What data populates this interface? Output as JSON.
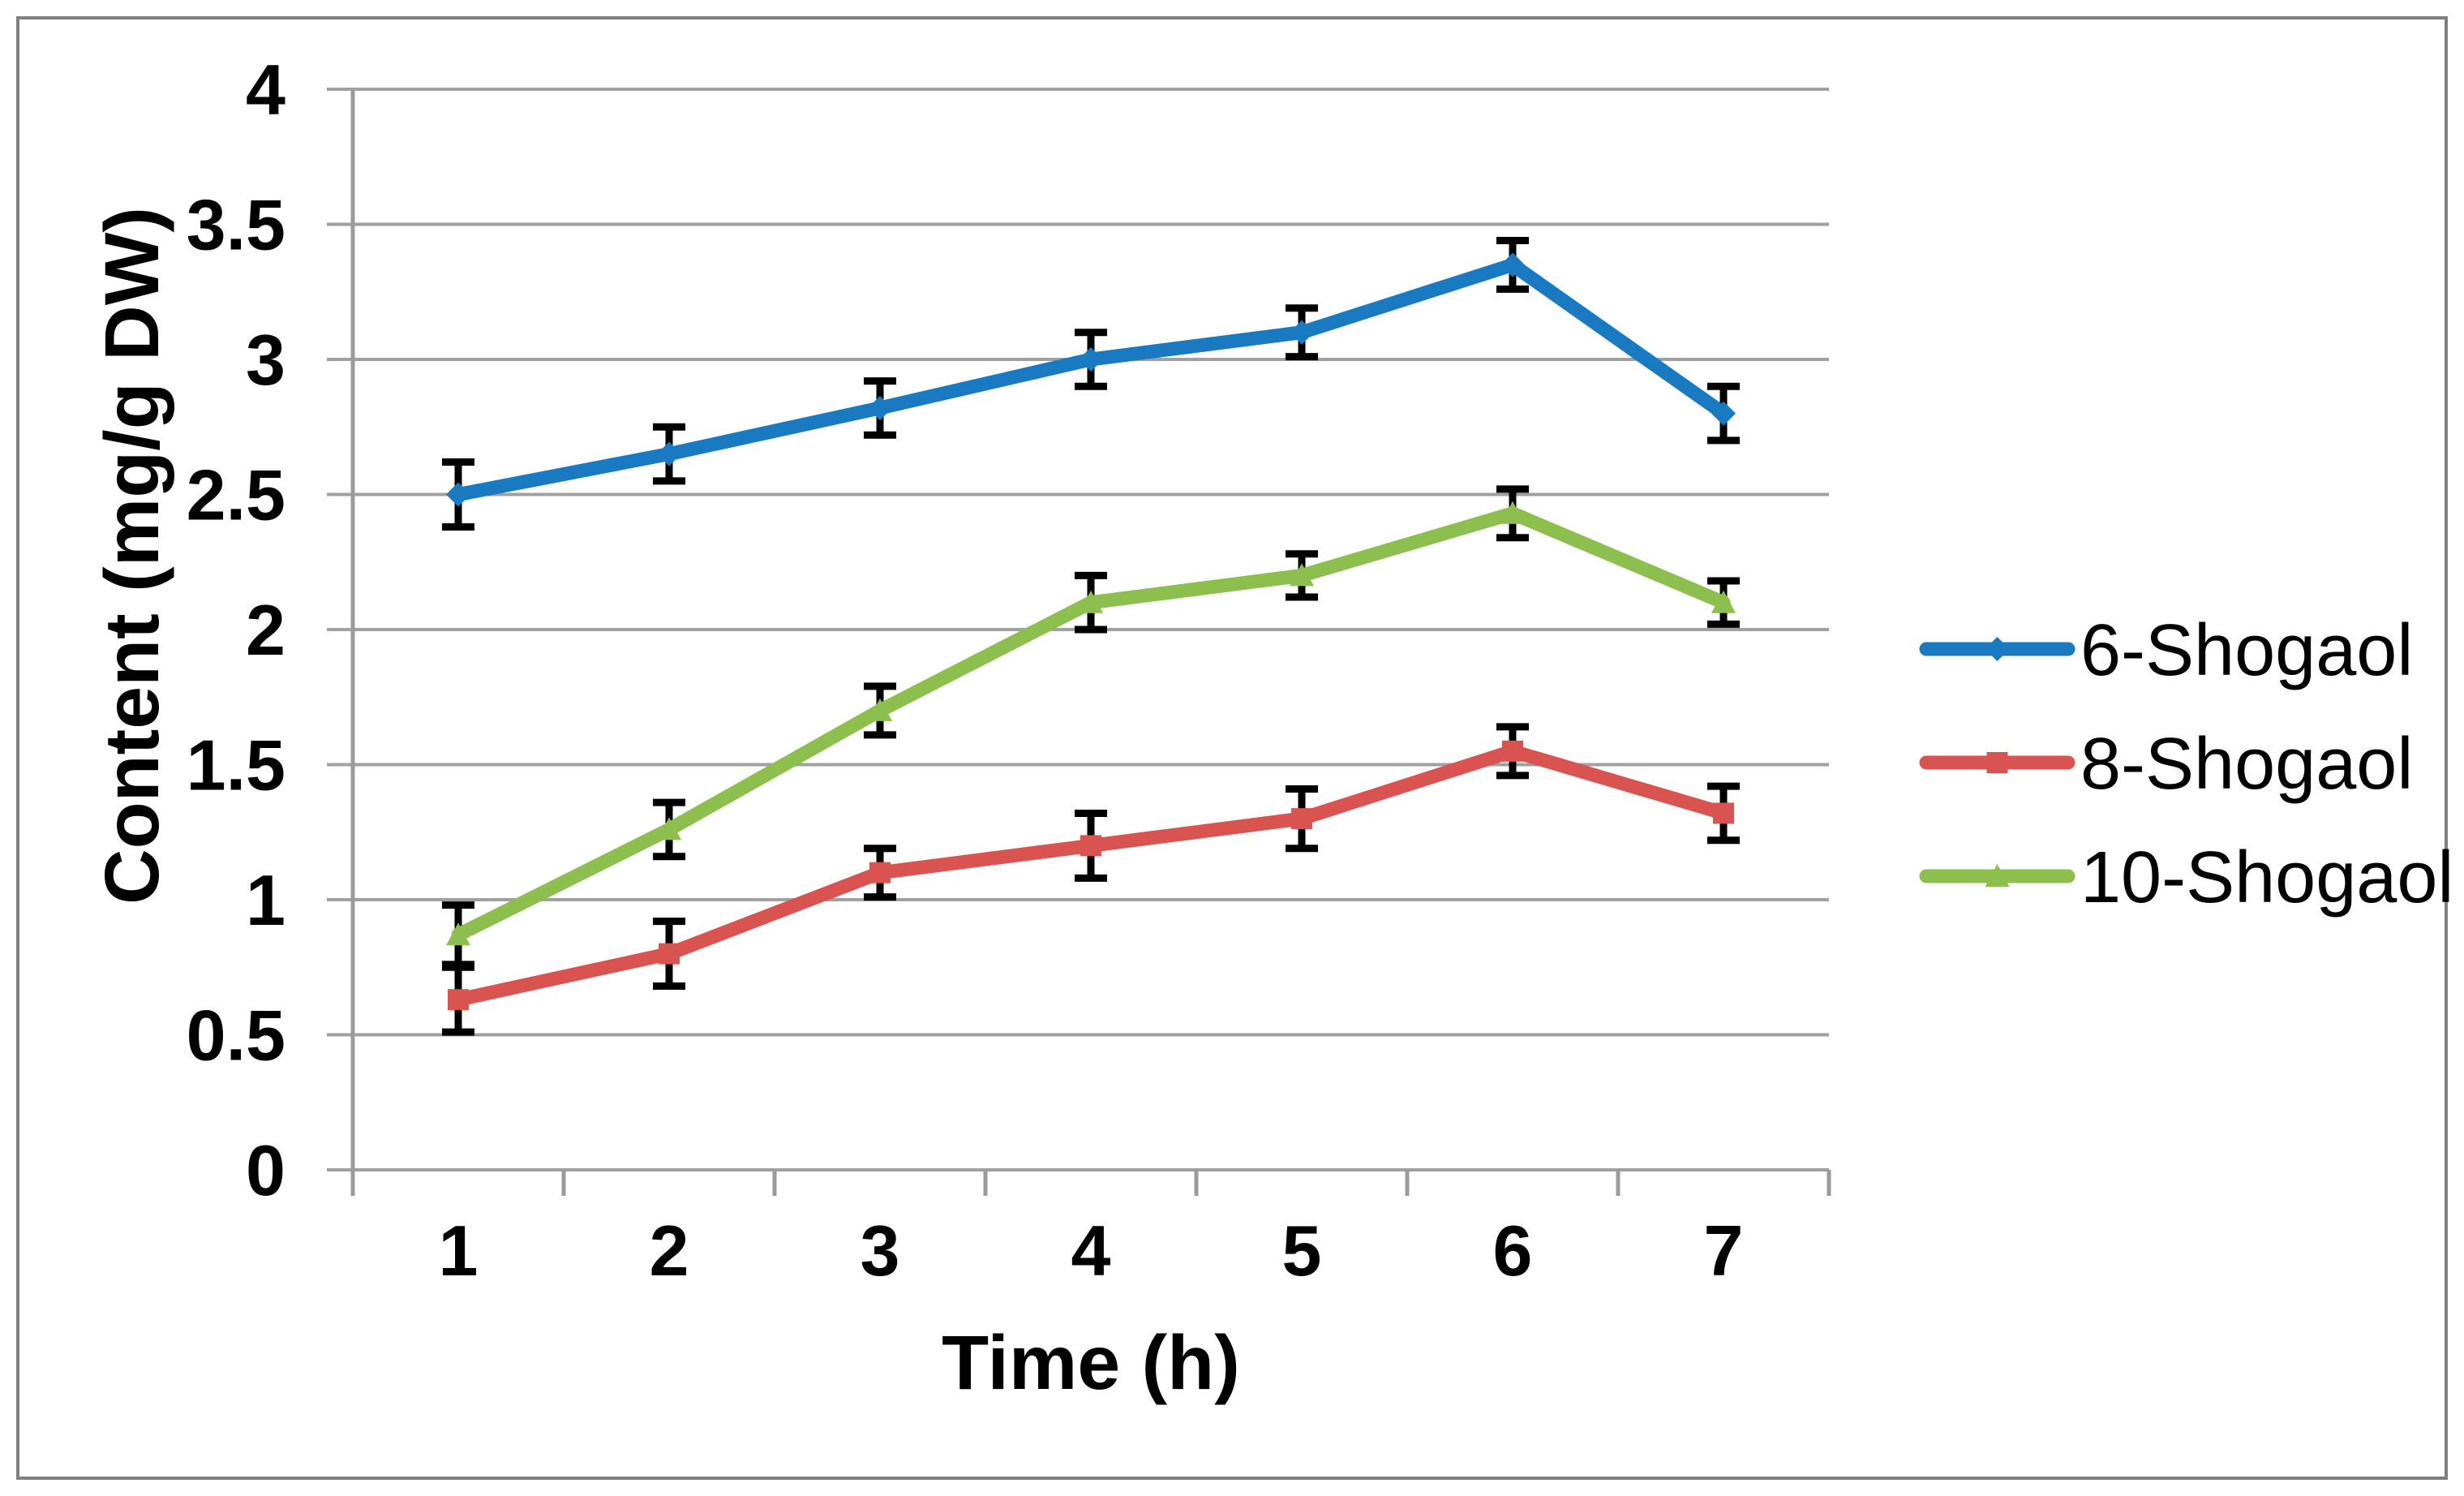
{
  "figure": {
    "background_color": "#FFFFFF",
    "border_color": "#7F7F7F",
    "gridline_color": "#A0A0A0",
    "axis_line_color": "#9B9B9B",
    "error_bar_color": "#000000"
  },
  "chart_data": {
    "type": "line",
    "title": "",
    "xlabel": "Time (h)",
    "ylabel": "Content (mg/g DW)",
    "categories": [
      1,
      2,
      3,
      4,
      5,
      6,
      7
    ],
    "x_tick_labels": [
      "1",
      "2",
      "3",
      "4",
      "5",
      "6",
      "7"
    ],
    "y_tick_labels": [
      "0",
      "0.5",
      "1",
      "1.5",
      "2",
      "2.5",
      "3",
      "3.5",
      "4"
    ],
    "y_ticks": [
      0,
      0.5,
      1,
      1.5,
      2,
      2.5,
      3,
      3.5,
      4
    ],
    "ylim": [
      0,
      4
    ],
    "grid": "horizontal",
    "legend_position": "right",
    "error_bars": true,
    "series": [
      {
        "name": "6-Shogaol",
        "color": "#1A7AC1",
        "marker": "diamond",
        "values": [
          2.5,
          2.65,
          2.82,
          3.0,
          3.1,
          3.35,
          2.8
        ],
        "errors": [
          0.12,
          0.1,
          0.1,
          0.1,
          0.09,
          0.09,
          0.1
        ]
      },
      {
        "name": "8-Shogaol",
        "color": "#D95350",
        "marker": "square",
        "values": [
          0.63,
          0.8,
          1.1,
          1.2,
          1.3,
          1.55,
          1.32
        ],
        "errors": [
          0.12,
          0.12,
          0.09,
          0.12,
          0.11,
          0.09,
          0.1
        ]
      },
      {
        "name": "10-Shogaol",
        "color": "#8CBF4E",
        "marker": "triangle",
        "values": [
          0.87,
          1.26,
          1.7,
          2.1,
          2.2,
          2.43,
          2.1
        ],
        "errors": [
          0.11,
          0.1,
          0.09,
          0.1,
          0.08,
          0.09,
          0.08
        ]
      }
    ],
    "legend_labels": [
      "6-Shogaol",
      "8-Shogaol",
      "10-Shogaol"
    ]
  }
}
